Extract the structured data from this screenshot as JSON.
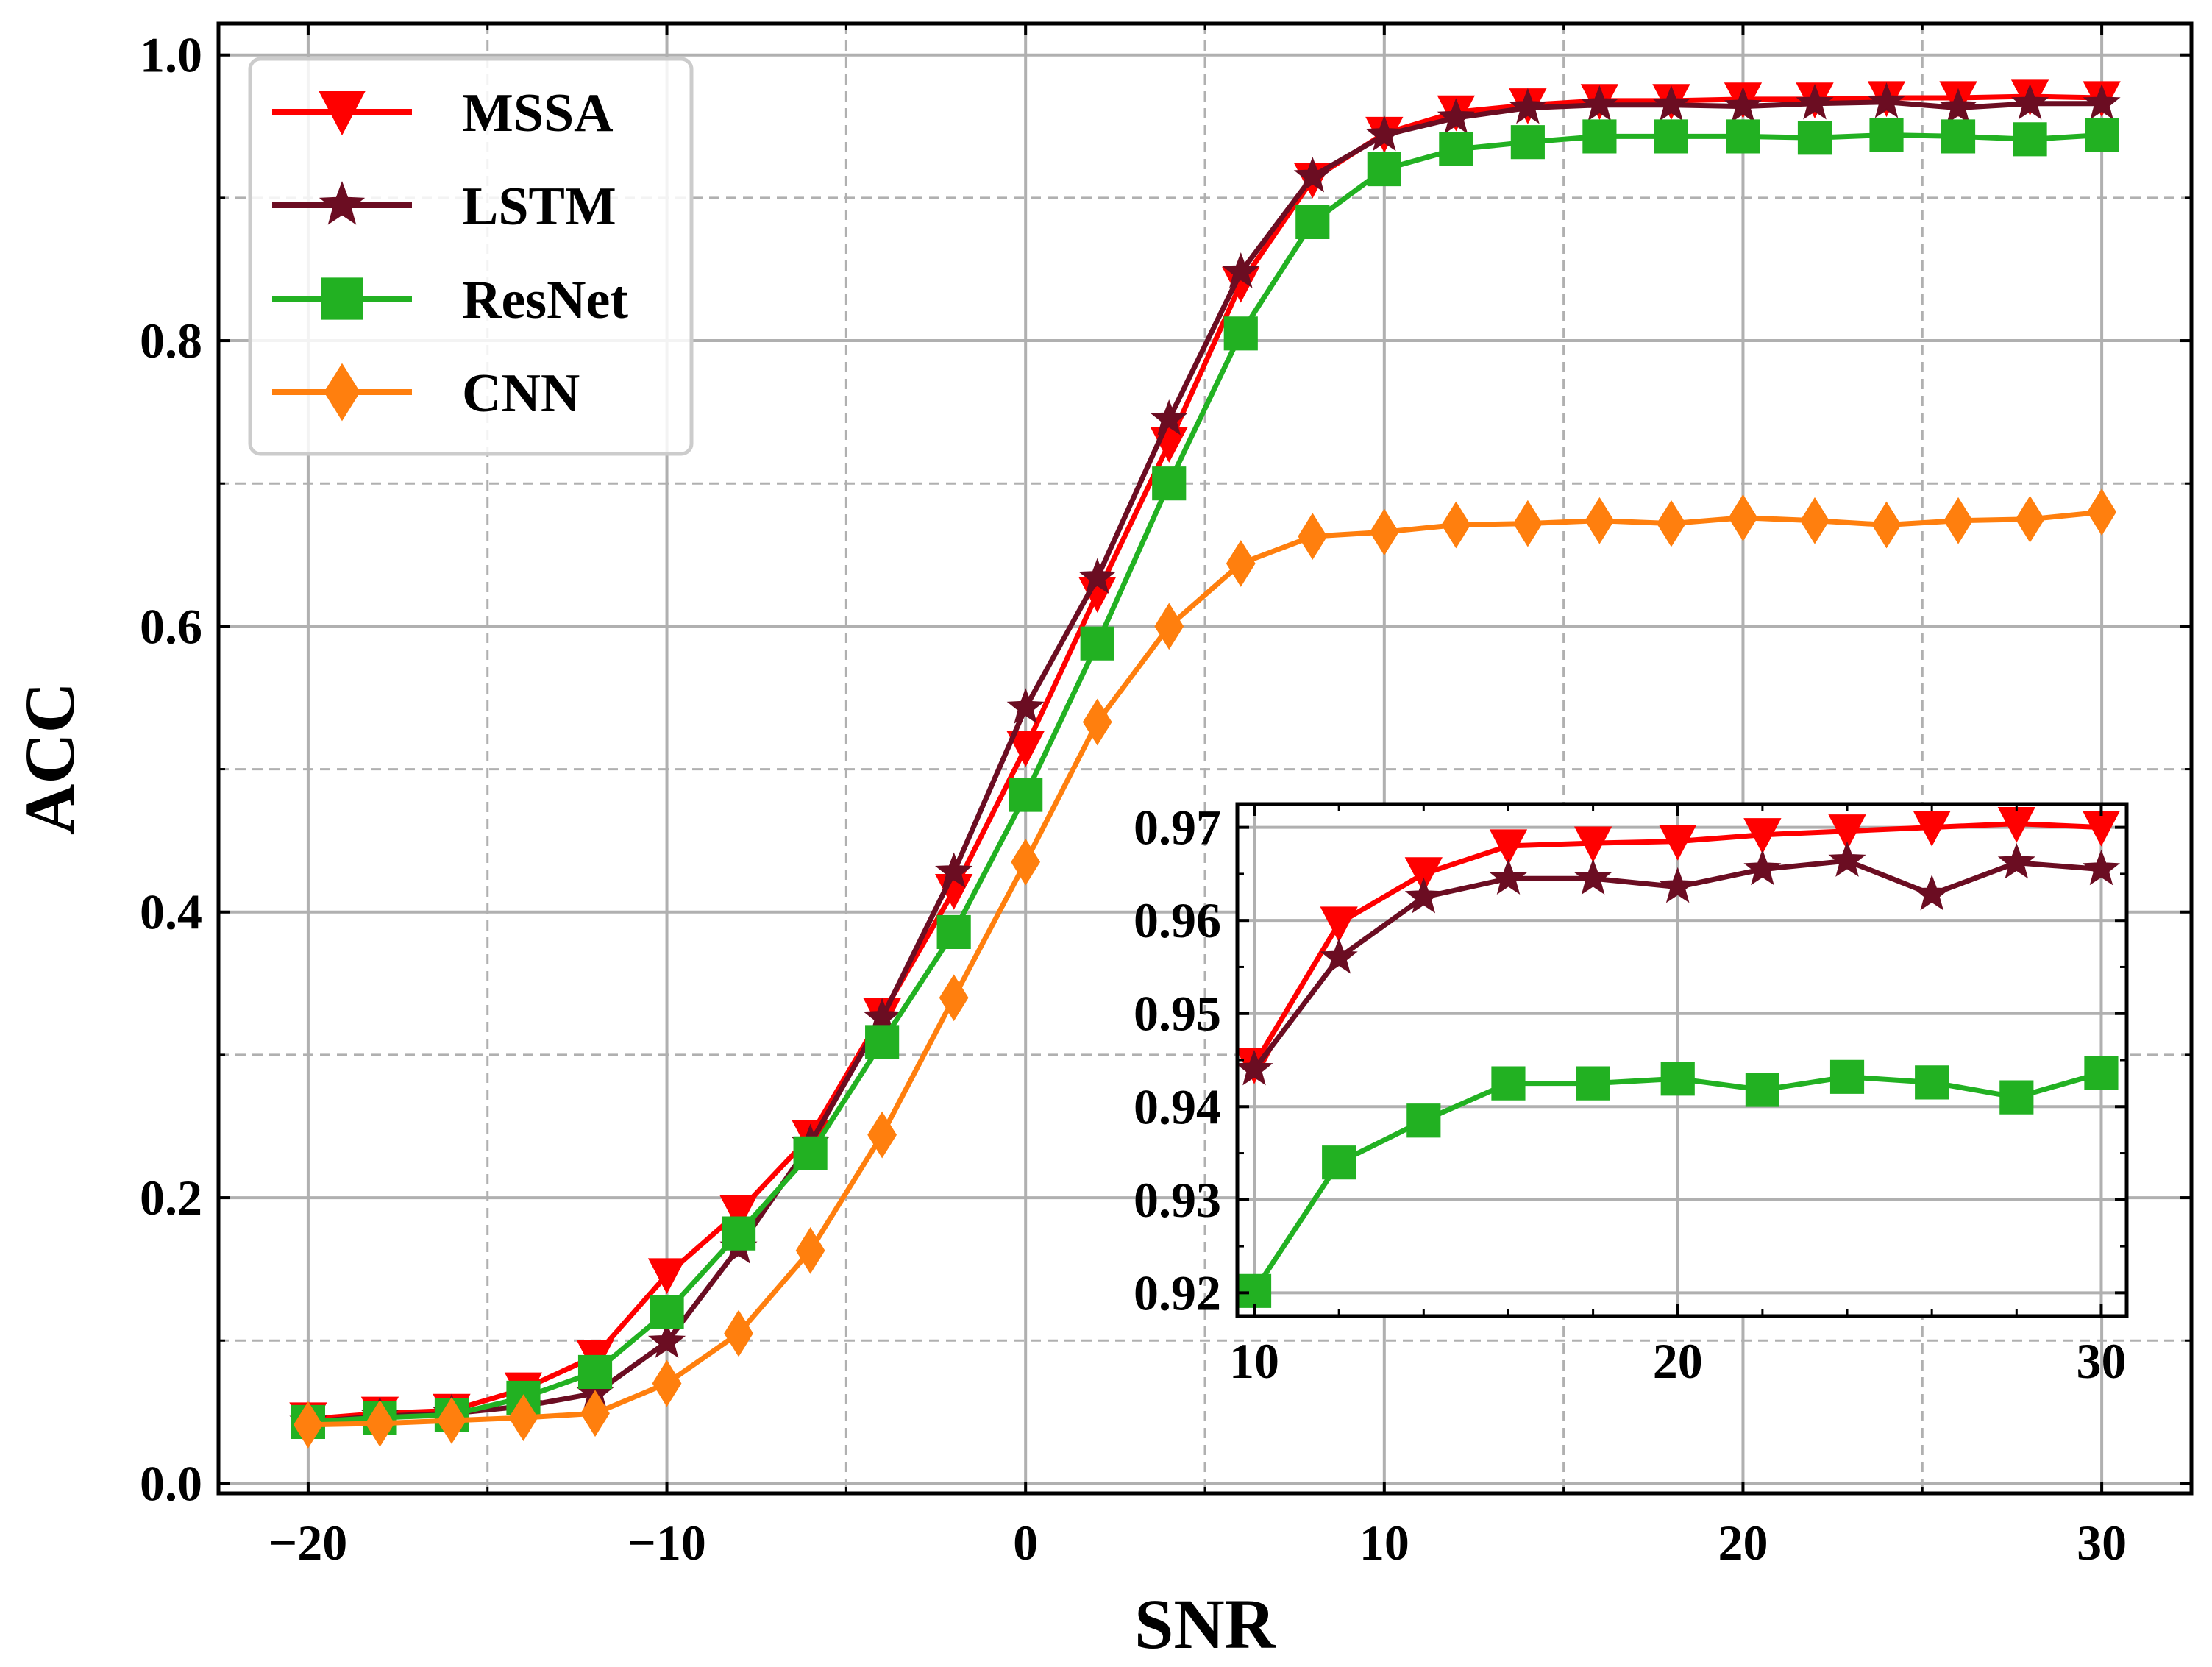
{
  "chart_data": [
    {
      "type": "line",
      "id": "main",
      "xlabel": "SNR",
      "ylabel": "ACC",
      "xlim": [
        -22.5,
        32.5
      ],
      "ylim": [
        -0.007,
        1.022
      ],
      "x_major_ticks": [
        -20,
        -10,
        0,
        10,
        20,
        30
      ],
      "x_tick_labels": [
        "−20",
        "−10",
        "0",
        "10",
        "20",
        "30"
      ],
      "x_minor_ticks": [
        -15,
        -5,
        5,
        15,
        25
      ],
      "y_major_ticks": [
        0.0,
        0.2,
        0.4,
        0.6,
        0.8,
        1.0
      ],
      "y_tick_labels": [
        "0.0",
        "0.2",
        "0.4",
        "0.6",
        "0.8",
        "1.0"
      ],
      "y_minor_ticks": [
        0.1,
        0.3,
        0.5,
        0.7,
        0.9
      ],
      "grid": true,
      "legend_position": "top-left",
      "x": [
        -20,
        -18,
        -16,
        -14,
        -12,
        -10,
        -8,
        -6,
        -4,
        -2,
        0,
        2,
        4,
        6,
        8,
        10,
        12,
        14,
        16,
        18,
        20,
        22,
        24,
        26,
        28,
        30
      ],
      "series": [
        {
          "name": "MSSA",
          "color": "#ff0000",
          "marker": "triangle-down",
          "values": [
            0.045,
            0.049,
            0.051,
            0.066,
            0.089,
            0.146,
            0.19,
            0.243,
            0.328,
            0.415,
            0.515,
            0.623,
            0.728,
            0.84,
            0.913,
            0.945,
            0.96,
            0.965,
            0.968,
            0.968,
            0.969,
            0.969,
            0.97,
            0.97,
            0.971,
            0.97
          ]
        },
        {
          "name": "LSTM",
          "color": "#6b0d22",
          "marker": "star",
          "values": [
            0.043,
            0.047,
            0.049,
            0.054,
            0.063,
            0.099,
            0.165,
            0.238,
            0.326,
            0.428,
            0.543,
            0.634,
            0.745,
            0.848,
            0.915,
            0.944,
            0.956,
            0.963,
            0.965,
            0.965,
            0.964,
            0.966,
            0.967,
            0.963,
            0.966,
            0.966
          ]
        },
        {
          "name": "ResNet",
          "color": "#22b122",
          "marker": "square",
          "values": [
            0.043,
            0.046,
            0.048,
            0.06,
            0.078,
            0.12,
            0.175,
            0.231,
            0.309,
            0.386,
            0.482,
            0.588,
            0.7,
            0.805,
            0.883,
            0.92,
            0.934,
            0.939,
            0.943,
            0.943,
            0.943,
            0.942,
            0.944,
            0.943,
            0.941,
            0.944
          ]
        },
        {
          "name": "CNN",
          "color": "#ff7f0e",
          "marker": "diamond",
          "values": [
            0.041,
            0.042,
            0.044,
            0.046,
            0.049,
            0.07,
            0.105,
            0.163,
            0.244,
            0.34,
            0.435,
            0.533,
            0.6,
            0.644,
            0.663,
            0.666,
            0.671,
            0.672,
            0.674,
            0.672,
            0.676,
            0.674,
            0.671,
            0.674,
            0.675,
            0.68
          ]
        }
      ]
    },
    {
      "type": "line",
      "id": "inset",
      "xlim": [
        9.6,
        30.6
      ],
      "ylim": [
        0.9175,
        0.9725
      ],
      "x_major_ticks": [
        10,
        20,
        30
      ],
      "x_tick_labels": [
        "10",
        "20",
        "30"
      ],
      "x_minor_ticks": [
        12,
        14,
        16,
        18,
        22,
        24,
        26,
        28
      ],
      "y_major_ticks": [
        0.92,
        0.93,
        0.94,
        0.95,
        0.96,
        0.97
      ],
      "y_tick_labels": [
        "0.92",
        "0.93",
        "0.94",
        "0.95",
        "0.96",
        "0.97"
      ],
      "y_minor_ticks": [
        0.925,
        0.935,
        0.945,
        0.955,
        0.965
      ],
      "grid": true,
      "x": [
        10,
        12,
        14,
        16,
        18,
        20,
        22,
        24,
        26,
        28,
        30
      ],
      "series": [
        {
          "name": "MSSA",
          "color": "#ff0000",
          "marker": "triangle-down",
          "values": [
            0.9445,
            0.9597,
            0.965,
            0.968,
            0.9683,
            0.9685,
            0.9692,
            0.9696,
            0.97,
            0.9704,
            0.97
          ]
        },
        {
          "name": "LSTM",
          "color": "#6b0d22",
          "marker": "star",
          "values": [
            0.944,
            0.956,
            0.9625,
            0.9645,
            0.9645,
            0.9636,
            0.9655,
            0.9664,
            0.9628,
            0.9662,
            0.9655
          ]
        },
        {
          "name": "ResNet",
          "color": "#22b122",
          "marker": "square",
          "values": [
            0.9202,
            0.934,
            0.9385,
            0.9425,
            0.9425,
            0.943,
            0.9418,
            0.9432,
            0.9426,
            0.941,
            0.9436
          ]
        }
      ]
    }
  ]
}
